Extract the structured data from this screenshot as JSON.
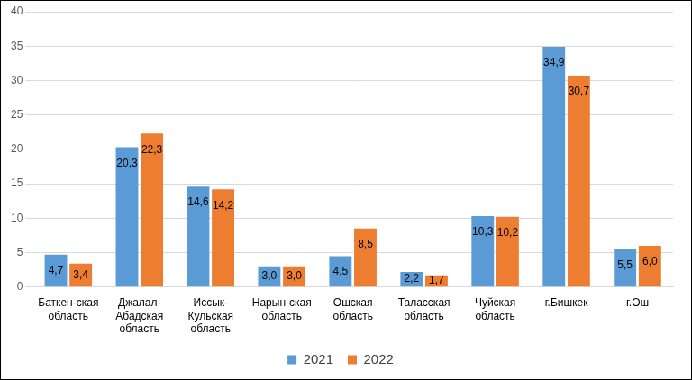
{
  "chart_data": {
    "type": "bar",
    "categories": [
      [
        "Баткен-ская",
        "область"
      ],
      [
        "Джалал-",
        "Абадская",
        "область"
      ],
      [
        "Иссык-",
        "Кульская",
        "область"
      ],
      [
        "Нарын-ская",
        "область"
      ],
      [
        "Ошская",
        "область"
      ],
      [
        "Таласская",
        "область"
      ],
      [
        "Чуйская",
        "область"
      ],
      "г.Бишкек",
      "г.Ош"
    ],
    "series": [
      {
        "name": "2021",
        "color": "#5b9bd5",
        "values": [
          4.7,
          20.3,
          14.6,
          3.0,
          4.5,
          2.2,
          10.3,
          34.9,
          5.5
        ],
        "value_labels": [
          "4,7",
          "20,3",
          "14,6",
          "3,0",
          "4,5",
          "2,2",
          "10,3",
          "34,9",
          "5,5"
        ]
      },
      {
        "name": "2022",
        "color": "#ed7d31",
        "values": [
          3.4,
          22.3,
          14.2,
          3.0,
          8.5,
          1.7,
          10.2,
          30.7,
          6.0
        ],
        "value_labels": [
          "3,4",
          "22,3",
          "14,2",
          "3,0",
          "8,5",
          "1,7",
          "10,2",
          "30,7",
          "6,0"
        ]
      }
    ],
    "ylim": [
      0,
      40
    ],
    "yticks": [
      0,
      5,
      10,
      15,
      20,
      25,
      30,
      35,
      40
    ],
    "grid": true,
    "legend": "bottom",
    "data_labels": true
  }
}
